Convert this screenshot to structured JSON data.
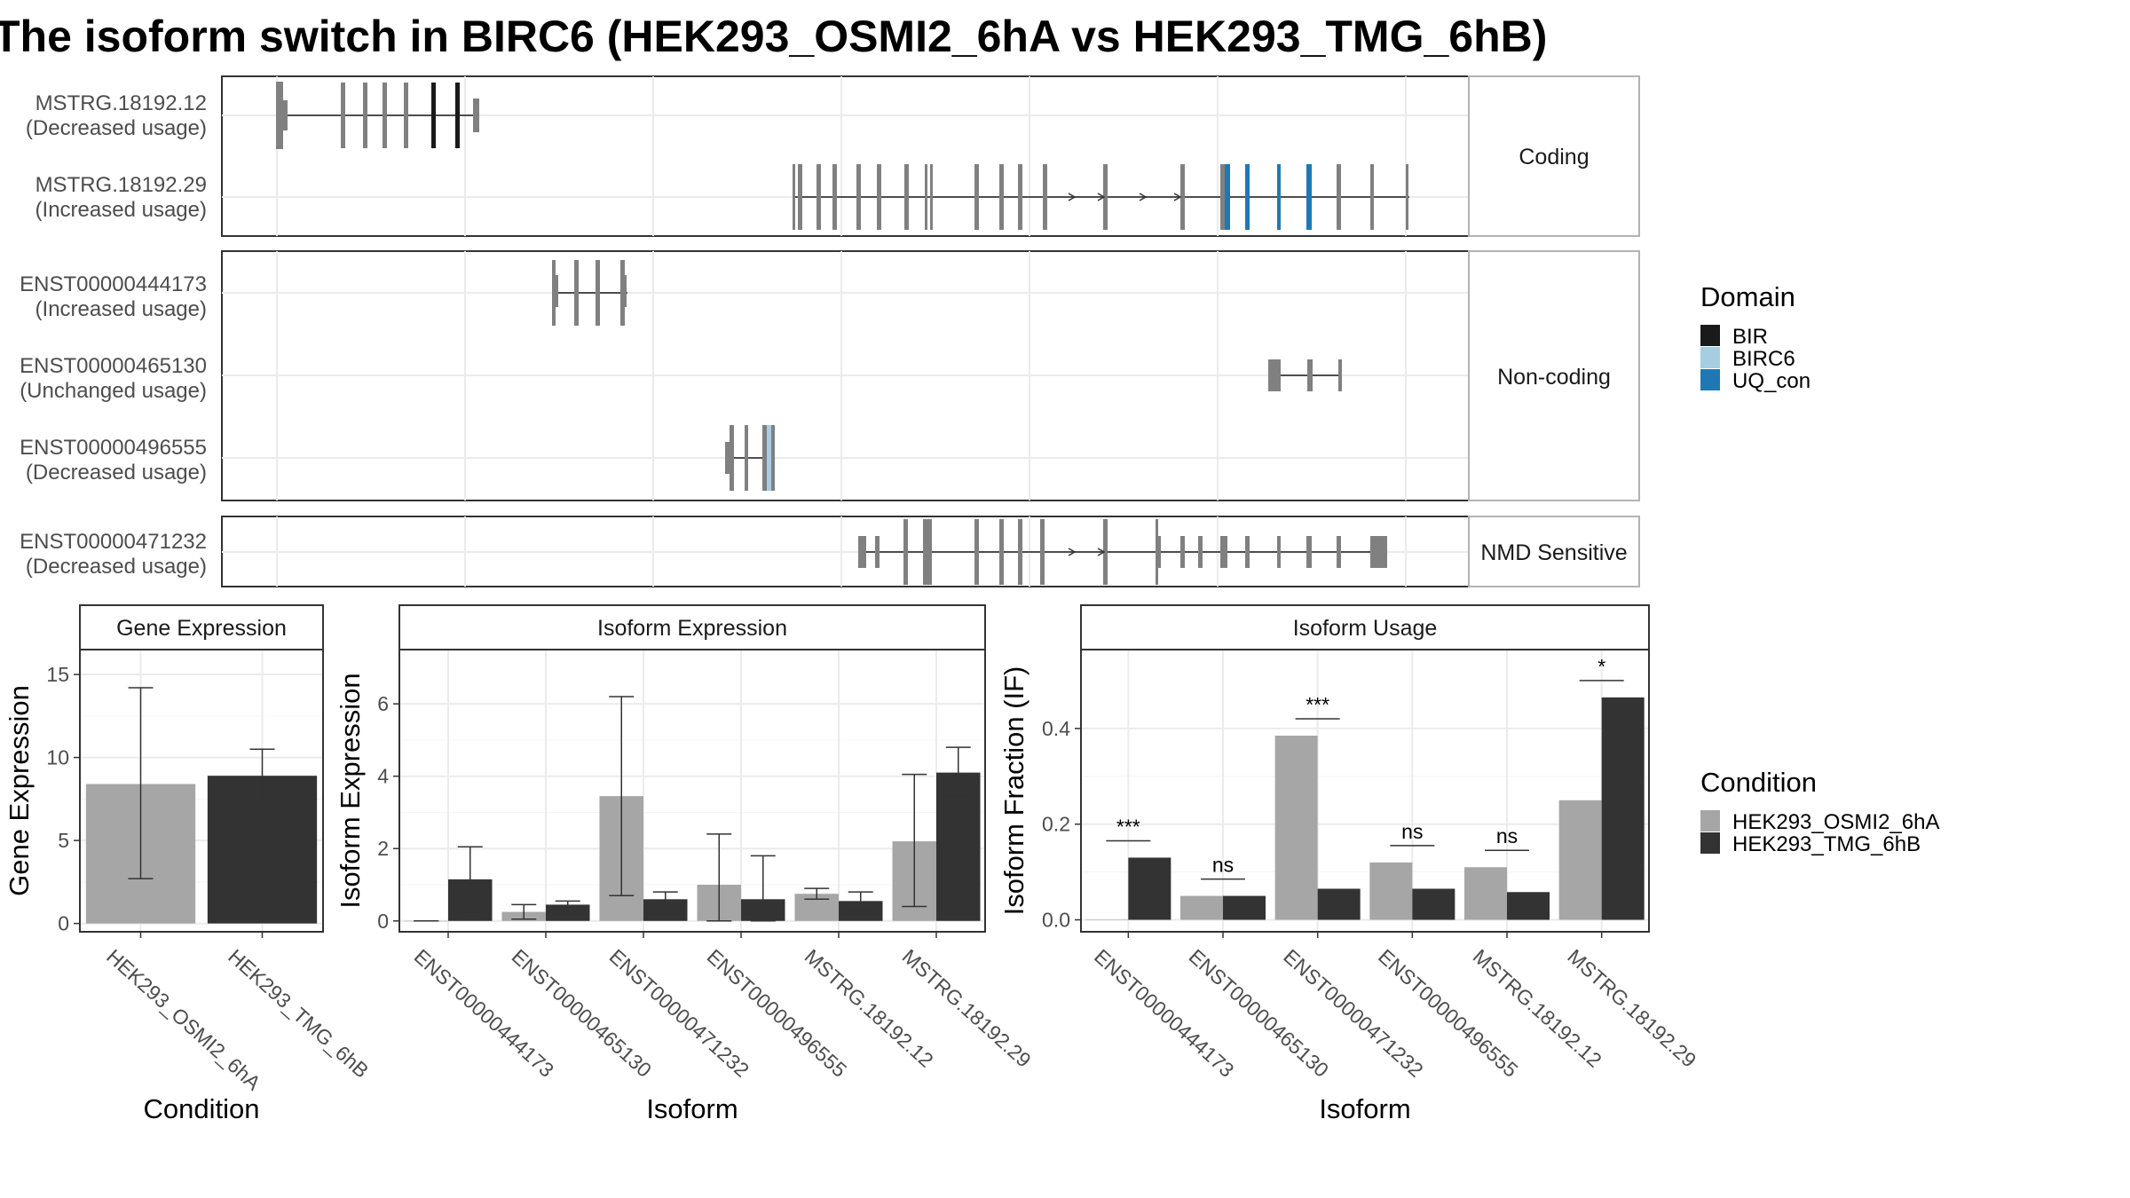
{
  "title": "The isoform switch in BIRC6 (HEK293_OSMI2_6hA vs HEK293_TMG_6hB)",
  "structure": {
    "groups": [
      {
        "label": "Coding",
        "isoforms": [
          {
            "id": "MSTRG.18192.12",
            "usage": "(Decreased usage)"
          },
          {
            "id": "MSTRG.18192.29",
            "usage": "(Increased usage)"
          }
        ]
      },
      {
        "label": "Non-coding",
        "isoforms": [
          {
            "id": "ENST00000444173",
            "usage": "(Increased usage)"
          },
          {
            "id": "ENST00000465130",
            "usage": "(Unchanged usage)"
          },
          {
            "id": "ENST00000496555",
            "usage": "(Decreased usage)"
          }
        ]
      },
      {
        "label": "NMD Sensitive",
        "isoforms": [
          {
            "id": "ENST00000471232",
            "usage": "(Decreased usage)"
          }
        ]
      }
    ]
  },
  "legend_domain": {
    "title": "Domain",
    "items": [
      {
        "label": "BIR",
        "color": "#1a1a1a"
      },
      {
        "label": "BIRC6",
        "color": "#a6cee3"
      },
      {
        "label": "UQ_con",
        "color": "#1f78b4"
      }
    ]
  },
  "legend_condition": {
    "title": "Condition",
    "items": [
      {
        "label": "HEK293_OSMI2_6hA",
        "color": "#a6a6a6"
      },
      {
        "label": "HEK293_TMG_6hB",
        "color": "#333333"
      }
    ]
  },
  "chart_data": [
    {
      "type": "bar",
      "title": "Gene Expression",
      "xlabel": "Condition",
      "ylabel": "Gene Expression",
      "ylim": [
        -0.5,
        16.5
      ],
      "yticks": [
        0,
        5,
        10,
        15
      ],
      "categories": [
        "HEK293_OSMI2_6hA",
        "HEK293_TMG_6hB"
      ],
      "values": [
        8.4,
        8.9
      ],
      "errors": [
        [
          2.7,
          14.2
        ],
        [
          7.4,
          10.5
        ]
      ]
    },
    {
      "type": "bar",
      "title": "Isoform Expression",
      "xlabel": "Isoform",
      "ylabel": "Isoform Expression",
      "ylim": [
        -0.3,
        7.5
      ],
      "yticks": [
        0,
        2,
        4,
        6
      ],
      "categories": [
        "ENST00000444173",
        "ENST00000465130",
        "ENST00000471232",
        "ENST00000496555",
        "MSTRG.18192.12",
        "MSTRG.18192.29"
      ],
      "series": [
        {
          "name": "HEK293_OSMI2_6hA",
          "values": [
            0.0,
            0.25,
            3.45,
            1.0,
            0.75,
            2.2
          ],
          "errors": [
            [
              0.0,
              0.0
            ],
            [
              0.05,
              0.45
            ],
            [
              0.7,
              6.2
            ],
            [
              0.0,
              2.4
            ],
            [
              0.6,
              0.9
            ],
            [
              0.4,
              4.05
            ]
          ]
        },
        {
          "name": "HEK293_TMG_6hB",
          "values": [
            1.15,
            0.45,
            0.6,
            0.6,
            0.55,
            4.1
          ],
          "errors": [
            [
              0.25,
              2.05
            ],
            [
              0.4,
              0.55
            ],
            [
              0.4,
              0.8
            ],
            [
              0.0,
              1.8
            ],
            [
              0.3,
              0.8
            ],
            [
              3.45,
              4.8
            ]
          ]
        }
      ]
    },
    {
      "type": "bar",
      "title": "Isoform Usage",
      "xlabel": "Isoform",
      "ylabel": "Isoform Fraction (IF)",
      "ylim": [
        -0.025,
        0.565
      ],
      "yticks": [
        "0.0",
        "0.2",
        "0.4"
      ],
      "categories": [
        "ENST00000444173",
        "ENST00000465130",
        "ENST00000471232",
        "ENST00000496555",
        "MSTRG.18192.12",
        "MSTRG.18192.29"
      ],
      "series": [
        {
          "name": "HEK293_OSMI2_6hA",
          "values": [
            0.0,
            0.05,
            0.385,
            0.12,
            0.11,
            0.25
          ]
        },
        {
          "name": "HEK293_TMG_6hB",
          "values": [
            0.13,
            0.05,
            0.065,
            0.065,
            0.058,
            0.465
          ]
        }
      ],
      "significance": [
        "***",
        "ns",
        "***",
        "ns",
        "ns",
        "*"
      ]
    }
  ]
}
